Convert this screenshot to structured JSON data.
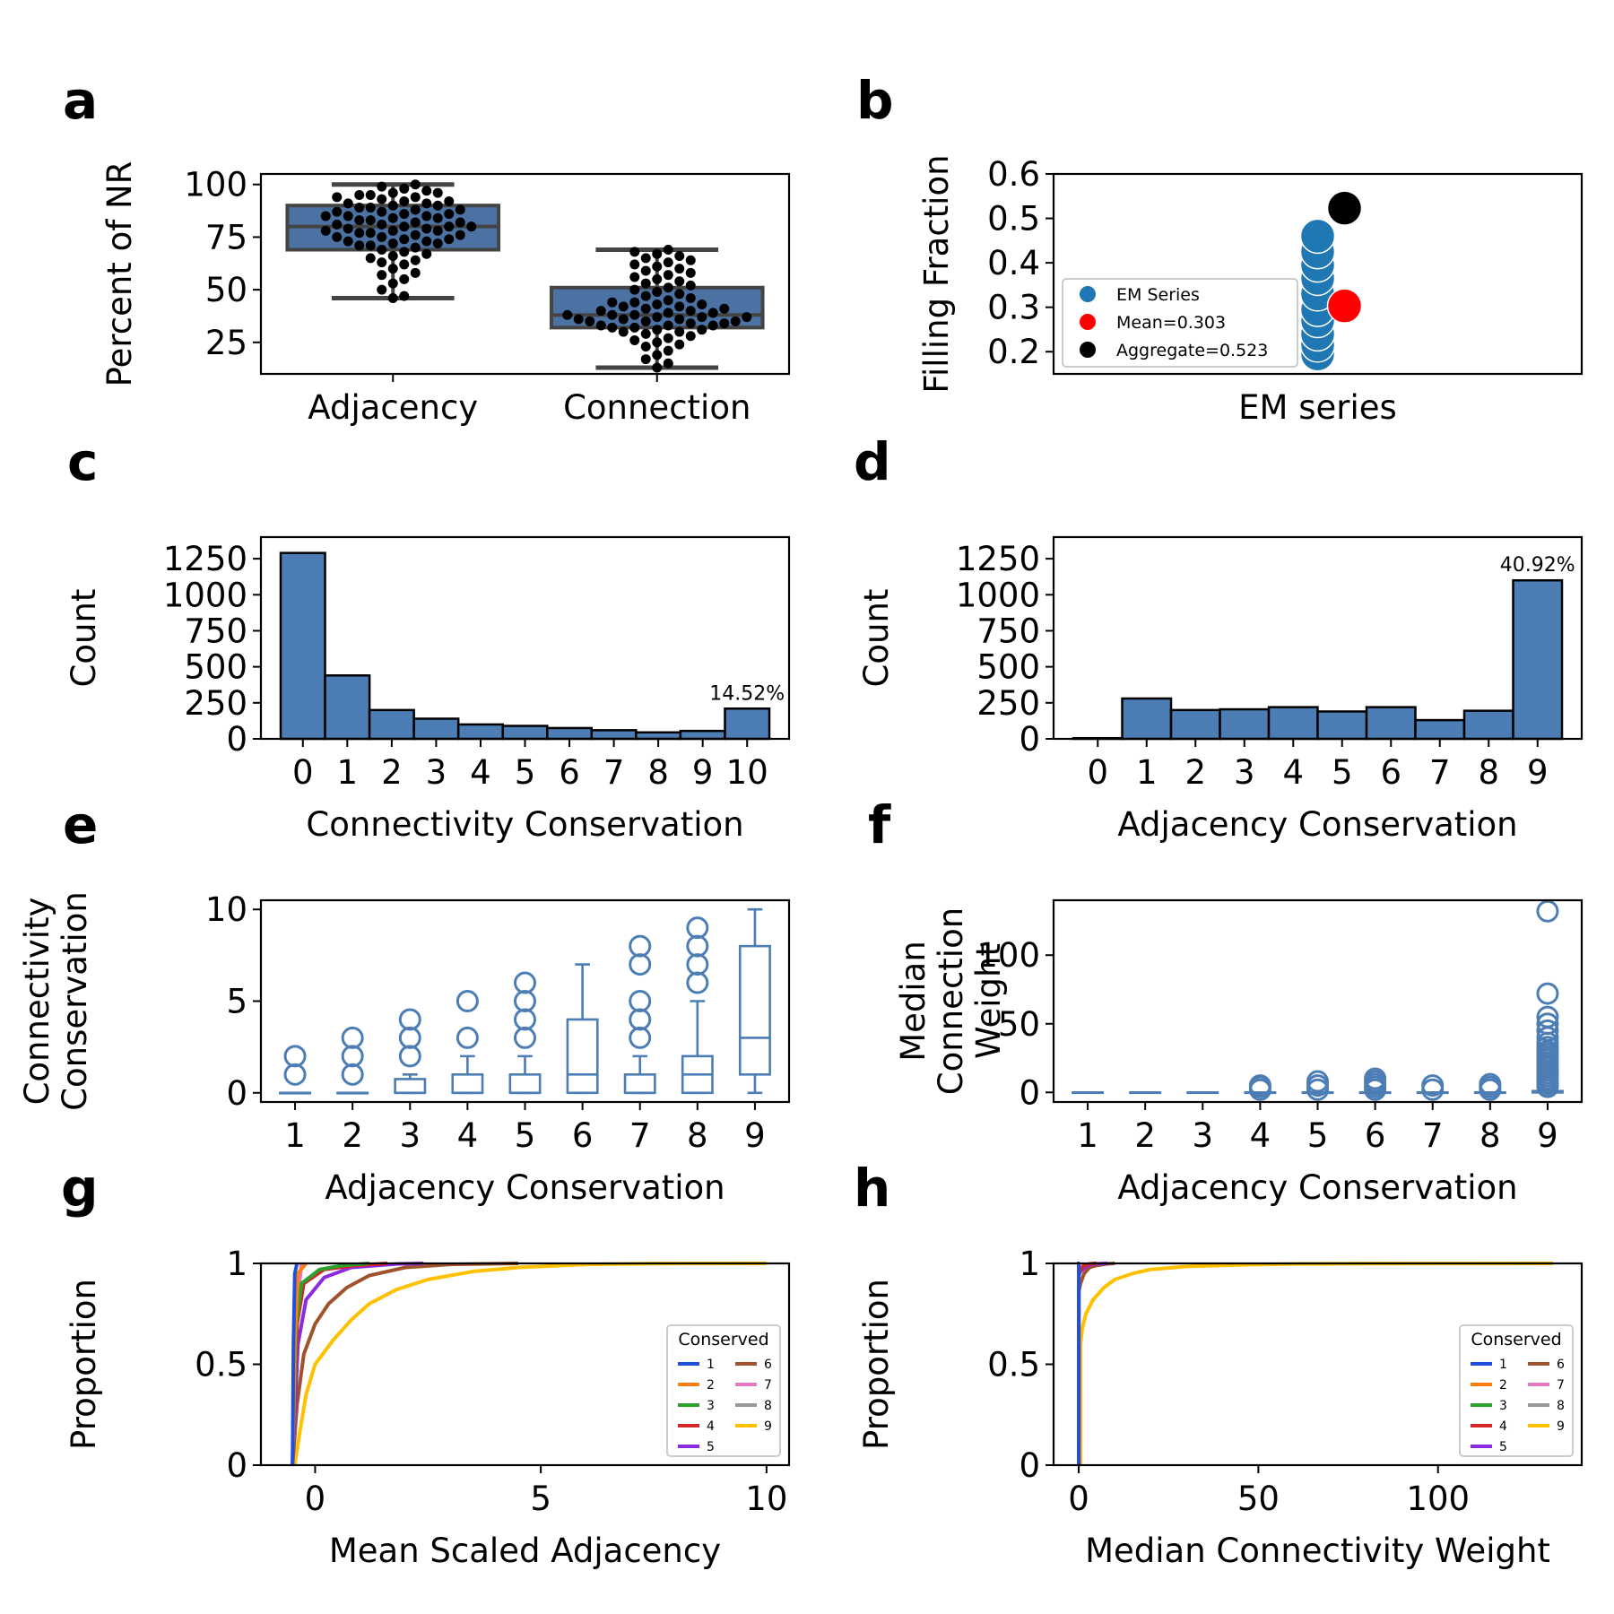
{
  "figure": {
    "panel_letters": [
      "a",
      "b",
      "c",
      "d",
      "e",
      "f",
      "g",
      "h"
    ]
  },
  "chart_data": [
    {
      "panel": "a",
      "type": "box-swarm",
      "categories": [
        "Adjacency",
        "Connection"
      ],
      "ylabel": "Percent of NR",
      "xlabel": "",
      "ylim": [
        10,
        105
      ],
      "yticks": [
        25,
        50,
        75,
        100
      ],
      "box_color": "#4c72a4",
      "boxes": [
        {
          "category": "Adjacency",
          "whisker_low": 46,
          "q1": 69,
          "median": 80,
          "q3": 90,
          "whisker_high": 100
        },
        {
          "category": "Connection",
          "whisker_low": 13,
          "q1": 32,
          "median": 38,
          "q3": 51,
          "whisker_high": 69
        }
      ],
      "points": {
        "Adjacency": [
          46,
          47,
          50,
          53,
          55,
          57,
          58,
          60,
          62,
          63,
          64,
          65,
          66,
          67,
          68,
          69,
          70,
          71,
          71,
          72,
          72,
          73,
          73,
          74,
          74,
          75,
          75,
          76,
          76,
          77,
          77,
          78,
          78,
          78,
          79,
          79,
          80,
          80,
          80,
          81,
          81,
          82,
          82,
          83,
          83,
          84,
          84,
          85,
          85,
          85,
          86,
          86,
          87,
          87,
          88,
          88,
          89,
          89,
          90,
          90,
          91,
          91,
          92,
          92,
          93,
          94,
          94,
          95,
          95,
          96,
          96,
          97,
          98,
          99,
          100
        ],
        "Connection": [
          13,
          15,
          17,
          19,
          21,
          23,
          24,
          25,
          26,
          27,
          28,
          29,
          30,
          30,
          31,
          31,
          32,
          32,
          33,
          33,
          33,
          34,
          34,
          35,
          35,
          35,
          36,
          36,
          36,
          37,
          37,
          37,
          38,
          38,
          38,
          39,
          39,
          40,
          40,
          41,
          41,
          42,
          42,
          43,
          43,
          44,
          44,
          45,
          46,
          47,
          48,
          49,
          50,
          51,
          52,
          53,
          54,
          55,
          56,
          57,
          58,
          59,
          60,
          61,
          62,
          63,
          64,
          65,
          66,
          67,
          68,
          69
        ]
      }
    },
    {
      "panel": "b",
      "type": "scatter",
      "xlabel": "EM series",
      "ylabel": "Filling Fraction",
      "ylim": [
        0.15,
        0.6
      ],
      "yticks": [
        0.2,
        0.3,
        0.4,
        0.5,
        0.6
      ],
      "series": [
        {
          "name": "EM Series",
          "color": "#1f77b4",
          "values": [
            0.195,
            0.215,
            0.24,
            0.27,
            0.295,
            0.33,
            0.365,
            0.395,
            0.425,
            0.46
          ]
        },
        {
          "name": "Mean=0.303",
          "color": "#ff0000",
          "values": [
            0.303
          ]
        },
        {
          "name": "Aggregate=0.523",
          "color": "#000000",
          "values": [
            0.523
          ]
        }
      ],
      "legend": "center-left"
    },
    {
      "panel": "c",
      "type": "bar",
      "xlabel": "Connectivity Conservation",
      "ylabel": "Count",
      "categories": [
        "0",
        "1",
        "2",
        "3",
        "4",
        "5",
        "6",
        "7",
        "8",
        "9",
        "10"
      ],
      "values": [
        1290,
        440,
        200,
        140,
        100,
        90,
        75,
        60,
        45,
        55,
        210
      ],
      "ylim": [
        0,
        1400
      ],
      "yticks": [
        0,
        250,
        500,
        750,
        1000,
        1250
      ],
      "annotation": "14.52%",
      "annotation_index": 10,
      "bar_color": "#4c7db4"
    },
    {
      "panel": "d",
      "type": "bar",
      "xlabel": "Adjacency Conservation",
      "ylabel": "Count",
      "categories": [
        "0",
        "1",
        "2",
        "3",
        "4",
        "5",
        "6",
        "7",
        "8",
        "9"
      ],
      "values": [
        5,
        280,
        200,
        205,
        220,
        190,
        220,
        130,
        195,
        1100
      ],
      "ylim": [
        0,
        1400
      ],
      "yticks": [
        0,
        250,
        500,
        750,
        1000,
        1250
      ],
      "annotation": "40.92%",
      "annotation_index": 9,
      "bar_color": "#4c7db4"
    },
    {
      "panel": "e",
      "type": "box",
      "xlabel": "Adjacency Conservation",
      "ylabel": [
        "Connectivity",
        "Conservation"
      ],
      "categories": [
        "1",
        "2",
        "3",
        "4",
        "5",
        "6",
        "7",
        "8",
        "9"
      ],
      "ylim": [
        -0.5,
        10.5
      ],
      "yticks": [
        0,
        5,
        10
      ],
      "line_color": "#4c7db4",
      "boxes": [
        {
          "q1": 0,
          "median": 0,
          "q3": 0,
          "whisker_low": 0,
          "whisker_high": 0,
          "outliers": [
            1,
            2
          ]
        },
        {
          "q1": 0,
          "median": 0,
          "q3": 0,
          "whisker_low": 0,
          "whisker_high": 0,
          "outliers": [
            1,
            2,
            3
          ]
        },
        {
          "q1": 0,
          "median": 0,
          "q3": 0.75,
          "whisker_low": 0,
          "whisker_high": 1,
          "outliers": [
            2,
            3,
            4
          ]
        },
        {
          "q1": 0,
          "median": 0,
          "q3": 1,
          "whisker_low": 0,
          "whisker_high": 2,
          "outliers": [
            3,
            5
          ]
        },
        {
          "q1": 0,
          "median": 0,
          "q3": 1,
          "whisker_low": 0,
          "whisker_high": 2,
          "outliers": [
            3,
            4,
            5,
            6
          ]
        },
        {
          "q1": 0,
          "median": 1,
          "q3": 4,
          "whisker_low": 0,
          "whisker_high": 7,
          "outliers": []
        },
        {
          "q1": 0,
          "median": 0,
          "q3": 1,
          "whisker_low": 0,
          "whisker_high": 2,
          "outliers": [
            3,
            4,
            5,
            7,
            8
          ]
        },
        {
          "q1": 0,
          "median": 1,
          "q3": 2,
          "whisker_low": 0,
          "whisker_high": 5,
          "outliers": [
            6,
            7,
            8,
            9
          ]
        },
        {
          "q1": 1,
          "median": 3,
          "q3": 8,
          "whisker_low": 0,
          "whisker_high": 10,
          "outliers": []
        }
      ]
    },
    {
      "panel": "f",
      "type": "box",
      "xlabel": "Adjacency Conservation",
      "ylabel": [
        "Median",
        "Connection",
        "Weight"
      ],
      "categories": [
        "1",
        "2",
        "3",
        "4",
        "5",
        "6",
        "7",
        "8",
        "9"
      ],
      "ylim": [
        -7,
        140
      ],
      "yticks": [
        0,
        50,
        100
      ],
      "line_color": "#4c7db4",
      "boxes": [
        {
          "q1": 0,
          "median": 0,
          "q3": 0,
          "whisker_low": 0,
          "whisker_high": 0,
          "outliers": []
        },
        {
          "q1": 0,
          "median": 0,
          "q3": 0,
          "whisker_low": 0,
          "whisker_high": 0,
          "outliers": []
        },
        {
          "q1": 0,
          "median": 0,
          "q3": 0,
          "whisker_low": 0,
          "whisker_high": 0,
          "outliers": []
        },
        {
          "q1": 0,
          "median": 0,
          "q3": 0,
          "whisker_low": 0,
          "whisker_high": 0,
          "outliers": [
            2,
            4,
            5
          ]
        },
        {
          "q1": 0,
          "median": 0,
          "q3": 0,
          "whisker_low": 0,
          "whisker_high": 0,
          "outliers": [
            2,
            5,
            8
          ]
        },
        {
          "q1": 0,
          "median": 0,
          "q3": 0,
          "whisker_low": 0,
          "whisker_high": 0,
          "outliers": [
            2,
            4,
            6,
            8,
            10
          ]
        },
        {
          "q1": 0,
          "median": 0,
          "q3": 0,
          "whisker_low": 0,
          "whisker_high": 0,
          "outliers": [
            2,
            5
          ]
        },
        {
          "q1": 0,
          "median": 0,
          "q3": 0,
          "whisker_low": 0,
          "whisker_high": 0,
          "outliers": [
            2,
            4,
            6
          ]
        },
        {
          "q1": 0,
          "median": 0,
          "q3": 1,
          "whisker_low": 0,
          "whisker_high": 2,
          "outliers": [
            4,
            6,
            8,
            10,
            12,
            14,
            16,
            18,
            20,
            22,
            24,
            26,
            28,
            30,
            33,
            36,
            40,
            45,
            50,
            55,
            72,
            132
          ]
        }
      ]
    },
    {
      "panel": "g",
      "type": "line",
      "subtype": "ecdf",
      "xlabel": "Mean Scaled Adjacency",
      "ylabel": "Proportion",
      "xlim": [
        -1.2,
        10.5
      ],
      "ylim": [
        0,
        1.0
      ],
      "xticks": [
        0,
        5,
        10
      ],
      "yticks": [
        0.0,
        0.5,
        1.0
      ],
      "legend_title": "Conserved",
      "legend": "lower-right",
      "series": [
        {
          "name": "1",
          "color": "#1f4fe0",
          "x": [
            -0.5,
            -0.48,
            -0.45,
            -0.4
          ],
          "y": [
            0,
            0.6,
            0.95,
            1.0
          ]
        },
        {
          "name": "2",
          "color": "#ff7f0e",
          "x": [
            -0.5,
            -0.45,
            -0.38,
            -0.2
          ],
          "y": [
            0,
            0.6,
            0.95,
            1.0
          ]
        },
        {
          "name": "3",
          "color": "#2ca02c",
          "x": [
            -0.5,
            -0.42,
            -0.3,
            0.1,
            0.6,
            1.2
          ],
          "y": [
            0,
            0.7,
            0.9,
            0.97,
            0.99,
            1.0
          ]
        },
        {
          "name": "4",
          "color": "#d62728",
          "x": [
            -0.5,
            -0.4,
            -0.25,
            0.2,
            0.9,
            1.6
          ],
          "y": [
            0,
            0.7,
            0.9,
            0.97,
            0.99,
            1.0
          ]
        },
        {
          "name": "5",
          "color": "#8a2be2",
          "x": [
            -0.5,
            -0.38,
            -0.2,
            0.2,
            0.8,
            1.8,
            2.4
          ],
          "y": [
            0,
            0.6,
            0.82,
            0.93,
            0.98,
            0.997,
            1.0
          ]
        },
        {
          "name": "6",
          "color": "#a0522d",
          "x": [
            -0.5,
            -0.4,
            -0.25,
            0.0,
            0.3,
            0.7,
            1.2,
            2.0,
            3.0,
            4.5
          ],
          "y": [
            0,
            0.3,
            0.55,
            0.7,
            0.8,
            0.88,
            0.94,
            0.98,
            0.995,
            1.0
          ]
        },
        {
          "name": "7",
          "color": "#e377c2",
          "x": [
            -0.5,
            -0.45,
            -0.3
          ],
          "y": [
            0,
            0.7,
            1.0
          ]
        },
        {
          "name": "8",
          "color": "#999999",
          "x": [
            -0.5,
            -0.45,
            -0.3
          ],
          "y": [
            0,
            0.7,
            1.0
          ]
        },
        {
          "name": "9",
          "color": "#ffc000",
          "x": [
            -0.45,
            -0.35,
            -0.2,
            0.0,
            0.4,
            0.8,
            1.2,
            1.8,
            2.5,
            3.5,
            4.5,
            6.0,
            7.5,
            10.0
          ],
          "y": [
            0,
            0.15,
            0.35,
            0.5,
            0.62,
            0.72,
            0.8,
            0.87,
            0.92,
            0.96,
            0.98,
            0.995,
            0.999,
            1.0
          ]
        }
      ]
    },
    {
      "panel": "h",
      "type": "line",
      "subtype": "ecdf",
      "xlabel": "Median Connectivity Weight",
      "ylabel": "Proportion",
      "xlim": [
        -7,
        140
      ],
      "ylim": [
        0,
        1.0
      ],
      "xticks": [
        0,
        50,
        100
      ],
      "yticks": [
        0.0,
        0.5,
        1.0
      ],
      "legend_title": "Conserved",
      "legend": "lower-right",
      "series": [
        {
          "name": "1",
          "color": "#1f4fe0",
          "x": [
            0,
            0.01,
            0.2
          ],
          "y": [
            0,
            1.0,
            1.0
          ]
        },
        {
          "name": "2",
          "color": "#ff7f0e",
          "x": [
            0,
            0.01,
            0.3
          ],
          "y": [
            0,
            1.0,
            1.0
          ]
        },
        {
          "name": "3",
          "color": "#2ca02c",
          "x": [
            0,
            0.01,
            0.3
          ],
          "y": [
            0,
            1.0,
            1.0
          ]
        },
        {
          "name": "4",
          "color": "#d62728",
          "x": [
            0,
            0.5,
            1.5,
            3,
            5
          ],
          "y": [
            0.95,
            0.97,
            0.99,
            0.998,
            1.0
          ]
        },
        {
          "name": "5",
          "color": "#8a2be2",
          "x": [
            0,
            0.5,
            2,
            4,
            8
          ],
          "y": [
            0.94,
            0.96,
            0.985,
            0.997,
            1.0
          ]
        },
        {
          "name": "6",
          "color": "#a0522d",
          "x": [
            0,
            0.5,
            1.5,
            3,
            5,
            8,
            10
          ],
          "y": [
            0.86,
            0.9,
            0.95,
            0.98,
            0.99,
            0.998,
            1.0
          ]
        },
        {
          "name": "7",
          "color": "#e377c2",
          "x": [
            0,
            1,
            3,
            5
          ],
          "y": [
            0.96,
            0.985,
            0.997,
            1.0
          ]
        },
        {
          "name": "8",
          "color": "#999999",
          "x": [
            0,
            1,
            3,
            5
          ],
          "y": [
            0.95,
            0.98,
            0.996,
            1.0
          ]
        },
        {
          "name": "9",
          "color": "#ffc000",
          "x": [
            0.5,
            1,
            2,
            4,
            7,
            10,
            15,
            20,
            30,
            45,
            60,
            80,
            100,
            132
          ],
          "y": [
            0.6,
            0.68,
            0.75,
            0.82,
            0.88,
            0.92,
            0.95,
            0.97,
            0.985,
            0.993,
            0.997,
            0.999,
            0.9995,
            1.0
          ]
        }
      ]
    }
  ]
}
